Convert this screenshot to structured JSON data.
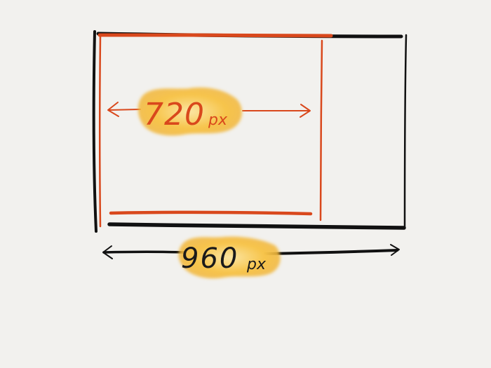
{
  "diagram": {
    "outer_width_label": {
      "number": "960",
      "unit": "px"
    },
    "inner_width_label": {
      "number": "720",
      "unit": "px"
    }
  },
  "colors": {
    "background": "#f2f1ee",
    "outer_stroke": "#111111",
    "inner_stroke": "#d9481c",
    "highlight": "#f7c44a",
    "highlight_light": "#fbe6a4",
    "outer_text": "#1a1a1a",
    "inner_text": "#d9481c"
  }
}
